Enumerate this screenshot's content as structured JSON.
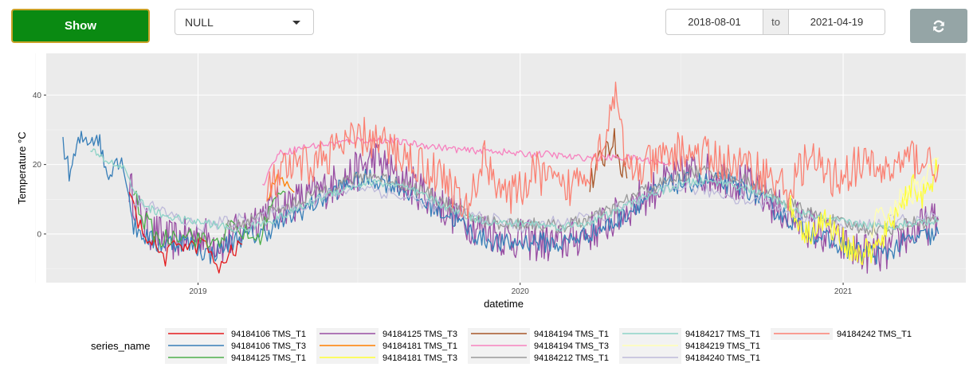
{
  "controls": {
    "show_label": "Show",
    "select_value": "NULL",
    "date_start": "2018-08-01",
    "date_sep": "to",
    "date_end": "2021-04-19",
    "show_color": "#0a8a12",
    "refresh_icon": "refresh-icon"
  },
  "chart_data": {
    "type": "line",
    "xlabel": "datetime",
    "ylabel": "Temperature °C",
    "x_range": [
      "2018-07-13",
      "2021-05-20"
    ],
    "ylim": [
      -14,
      52
    ],
    "x_ticks": [
      {
        "date": "2019-01-01",
        "label": "2019"
      },
      {
        "date": "2020-01-01",
        "label": "2020"
      },
      {
        "date": "2021-01-01",
        "label": "2021"
      }
    ],
    "y_ticks": [
      0,
      20,
      40
    ],
    "grid": true,
    "legend_title": "series_name",
    "legend_position": "bottom",
    "series": [
      {
        "name": "94184106 TMS_T1",
        "color": "#e41a1c",
        "start": "2018-10-15",
        "end": "2019-02-20",
        "points": [
          [
            "2018-10-15",
            12
          ],
          [
            "2018-10-25",
            3
          ],
          [
            "2018-11-15",
            -4
          ],
          [
            "2018-11-25",
            -7
          ],
          [
            "2018-12-10",
            -2
          ],
          [
            "2018-12-25",
            -4
          ],
          [
            "2019-01-10",
            -2
          ],
          [
            "2019-01-22",
            -11
          ],
          [
            "2019-02-05",
            -6
          ],
          [
            "2019-02-20",
            -3
          ]
        ]
      },
      {
        "name": "94184106 TMS_T3",
        "color": "#377eb8",
        "start": "2018-08-01",
        "end": "2021-04-19",
        "points": [
          [
            "2018-08-01",
            27
          ],
          [
            "2018-08-08",
            17
          ],
          [
            "2018-08-20",
            27
          ],
          [
            "2018-09-10",
            28
          ],
          [
            "2018-09-20",
            17
          ],
          [
            "2018-10-01",
            22
          ],
          [
            "2018-10-10",
            19
          ],
          [
            "2018-10-20",
            2
          ],
          [
            "2018-11-15",
            -3
          ],
          [
            "2018-12-15",
            -2
          ],
          [
            "2019-01-15",
            -6
          ],
          [
            "2019-02-15",
            -1
          ],
          [
            "2019-03-15",
            0
          ],
          [
            "2019-04-15",
            5
          ],
          [
            "2019-05-15",
            9
          ],
          [
            "2019-06-15",
            14
          ],
          [
            "2019-07-15",
            16
          ],
          [
            "2019-08-15",
            14
          ],
          [
            "2019-09-15",
            9
          ],
          [
            "2019-10-15",
            5
          ],
          [
            "2019-11-15",
            -1
          ],
          [
            "2019-12-15",
            -3
          ],
          [
            "2020-01-15",
            -2
          ],
          [
            "2020-02-15",
            -3
          ],
          [
            "2020-03-15",
            0
          ],
          [
            "2020-04-15",
            3
          ],
          [
            "2020-05-15",
            9
          ],
          [
            "2020-06-15",
            14
          ],
          [
            "2020-07-15",
            15
          ],
          [
            "2020-08-15",
            15
          ],
          [
            "2020-09-15",
            13
          ],
          [
            "2020-10-15",
            7
          ],
          [
            "2020-11-15",
            2
          ],
          [
            "2020-12-15",
            -2
          ],
          [
            "2021-01-15",
            -5
          ],
          [
            "2021-02-15",
            -6
          ],
          [
            "2021-03-15",
            -2
          ],
          [
            "2021-04-19",
            0
          ]
        ]
      },
      {
        "name": "94184125 TMS_T1",
        "color": "#4daf4a",
        "start": "2018-10-20",
        "end": "2019-04-10",
        "points": [
          [
            "2018-10-20",
            12
          ],
          [
            "2018-11-01",
            4
          ],
          [
            "2018-11-20",
            -2
          ],
          [
            "2018-12-15",
            1
          ],
          [
            "2019-01-15",
            -3
          ],
          [
            "2019-02-10",
            2
          ],
          [
            "2019-03-10",
            -2
          ],
          [
            "2019-03-25",
            8
          ],
          [
            "2019-04-10",
            12
          ]
        ]
      },
      {
        "name": "94184125 TMS_T3",
        "color": "#984ea3",
        "start": "2018-10-15",
        "end": "2021-04-19",
        "points": [
          [
            "2018-10-15",
            14
          ],
          [
            "2018-11-01",
            2
          ],
          [
            "2018-12-01",
            -2
          ],
          [
            "2019-01-01",
            0
          ],
          [
            "2019-02-01",
            -3
          ],
          [
            "2019-03-01",
            4
          ],
          [
            "2019-04-01",
            8
          ],
          [
            "2019-05-01",
            10
          ],
          [
            "2019-06-01",
            14
          ],
          [
            "2019-07-01",
            18
          ],
          [
            "2019-07-20",
            22
          ],
          [
            "2019-08-15",
            16
          ],
          [
            "2019-09-15",
            12
          ],
          [
            "2019-10-15",
            6
          ],
          [
            "2019-11-15",
            2
          ],
          [
            "2019-12-15",
            -1
          ],
          [
            "2020-01-15",
            -2
          ],
          [
            "2020-02-15",
            -3
          ],
          [
            "2020-03-15",
            0
          ],
          [
            "2020-04-15",
            4
          ],
          [
            "2020-05-15",
            10
          ],
          [
            "2020-06-15",
            15
          ],
          [
            "2020-07-15",
            18
          ],
          [
            "2020-08-15",
            17
          ],
          [
            "2020-09-15",
            14
          ],
          [
            "2020-10-15",
            8
          ],
          [
            "2020-11-15",
            3
          ],
          [
            "2020-12-15",
            -1
          ],
          [
            "2021-01-15",
            -5
          ],
          [
            "2021-02-15",
            -6
          ],
          [
            "2021-03-15",
            0
          ],
          [
            "2021-04-19",
            4
          ]
        ]
      },
      {
        "name": "94184181 TMS_T1",
        "color": "#ff7f00",
        "start": "2019-03-20",
        "end": "2019-04-20",
        "points": [
          [
            "2019-03-20",
            10
          ],
          [
            "2019-04-01",
            18
          ],
          [
            "2019-04-20",
            12
          ]
        ]
      },
      {
        "name": "94184181 TMS_T3",
        "color": "#ffff33",
        "start": "2020-11-01",
        "end": "2021-04-19",
        "points": [
          [
            "2020-11-01",
            8
          ],
          [
            "2020-11-20",
            0
          ],
          [
            "2020-12-10",
            4
          ],
          [
            "2021-01-01",
            -2
          ],
          [
            "2021-01-20",
            -6
          ],
          [
            "2021-02-10",
            -4
          ],
          [
            "2021-03-01",
            6
          ],
          [
            "2021-03-20",
            14
          ],
          [
            "2021-04-05",
            10
          ],
          [
            "2021-04-19",
            20
          ]
        ]
      },
      {
        "name": "94184194 TMS_T1",
        "color": "#a65628",
        "start": "2020-03-20",
        "end": "2020-05-01",
        "points": [
          [
            "2020-03-20",
            14
          ],
          [
            "2020-04-15",
            28
          ],
          [
            "2020-05-01",
            16
          ]
        ]
      },
      {
        "name": "94184194 TMS_T3",
        "color": "#f781bf",
        "start": "2019-03-15",
        "end": "2020-06-20",
        "points": [
          [
            "2019-03-15",
            14
          ],
          [
            "2019-04-01",
            23
          ],
          [
            "2019-05-01",
            25
          ],
          [
            "2019-06-01",
            26
          ],
          [
            "2019-07-01",
            27
          ],
          [
            "2019-08-01",
            27
          ],
          [
            "2019-09-01",
            26
          ],
          [
            "2019-10-01",
            25
          ],
          [
            "2019-11-01",
            24
          ],
          [
            "2019-12-01",
            24
          ],
          [
            "2020-01-01",
            23
          ],
          [
            "2020-02-01",
            23
          ],
          [
            "2020-03-01",
            22
          ],
          [
            "2020-04-01",
            22
          ],
          [
            "2020-05-01",
            22
          ],
          [
            "2020-06-01",
            21
          ],
          [
            "2020-06-20",
            20
          ]
        ]
      },
      {
        "name": "94184212 TMS_T1",
        "color": "#999999",
        "start": "2019-02-01",
        "end": "2021-04-19",
        "points": [
          [
            "2019-02-01",
            2
          ],
          [
            "2019-03-15",
            5
          ],
          [
            "2019-04-15",
            8
          ],
          [
            "2019-05-15",
            12
          ],
          [
            "2019-06-15",
            15
          ],
          [
            "2019-07-15",
            17
          ],
          [
            "2019-08-15",
            15
          ],
          [
            "2019-09-15",
            12
          ],
          [
            "2019-10-15",
            8
          ],
          [
            "2019-11-15",
            4
          ],
          [
            "2019-12-15",
            3
          ],
          [
            "2020-01-15",
            3
          ],
          [
            "2020-02-15",
            2
          ],
          [
            "2020-03-15",
            4
          ],
          [
            "2020-04-15",
            7
          ],
          [
            "2020-05-15",
            12
          ],
          [
            "2020-06-15",
            15
          ],
          [
            "2020-07-15",
            18
          ],
          [
            "2020-08-15",
            18
          ],
          [
            "2020-09-15",
            15
          ],
          [
            "2020-10-15",
            11
          ],
          [
            "2020-11-15",
            7
          ],
          [
            "2020-12-15",
            4
          ],
          [
            "2021-01-15",
            2
          ],
          [
            "2021-02-15",
            1
          ],
          [
            "2021-03-15",
            3
          ],
          [
            "2021-04-19",
            4
          ]
        ]
      },
      {
        "name": "94184217 TMS_T1",
        "color": "#8dd3c7",
        "start": "2018-09-01",
        "end": "2021-04-19",
        "points": [
          [
            "2018-09-01",
            24
          ],
          [
            "2018-09-20",
            21
          ],
          [
            "2018-10-10",
            19
          ],
          [
            "2018-10-25",
            10
          ],
          [
            "2018-11-15",
            6
          ],
          [
            "2018-12-15",
            4
          ],
          [
            "2019-01-15",
            3
          ],
          [
            "2019-02-15",
            1
          ],
          [
            "2019-03-15",
            3
          ],
          [
            "2019-04-15",
            6
          ],
          [
            "2019-05-15",
            10
          ],
          [
            "2019-06-15",
            13
          ],
          [
            "2019-07-15",
            15
          ],
          [
            "2019-08-15",
            14
          ],
          [
            "2019-09-15",
            11
          ],
          [
            "2019-10-15",
            7
          ],
          [
            "2019-11-15",
            4
          ],
          [
            "2019-12-15",
            3
          ],
          [
            "2020-01-15",
            3
          ],
          [
            "2020-02-15",
            2
          ],
          [
            "2020-03-15",
            3
          ],
          [
            "2020-04-15",
            6
          ],
          [
            "2020-05-15",
            10
          ],
          [
            "2020-06-15",
            13
          ],
          [
            "2020-07-15",
            15
          ],
          [
            "2020-08-15",
            15
          ],
          [
            "2020-09-15",
            13
          ],
          [
            "2020-10-15",
            10
          ],
          [
            "2020-11-15",
            6
          ],
          [
            "2020-12-15",
            4
          ],
          [
            "2021-01-15",
            3
          ],
          [
            "2021-02-15",
            2
          ],
          [
            "2021-03-15",
            3
          ],
          [
            "2021-04-19",
            4
          ]
        ]
      },
      {
        "name": "94184219 TMS_T1",
        "color": "#ffffb3",
        "start": "2021-02-01",
        "end": "2021-04-19",
        "points": [
          [
            "2021-02-01",
            2
          ],
          [
            "2021-03-01",
            8
          ],
          [
            "2021-04-01",
            15
          ],
          [
            "2021-04-19",
            22
          ]
        ]
      },
      {
        "name": "94184240 TMS_T1",
        "color": "#bebada",
        "start": "2018-10-20",
        "end": "2021-04-19",
        "points": [
          [
            "2018-10-20",
            10
          ],
          [
            "2019-01-01",
            2
          ],
          [
            "2019-04-01",
            6
          ],
          [
            "2019-07-01",
            14
          ],
          [
            "2019-10-01",
            8
          ],
          [
            "2020-01-01",
            2
          ],
          [
            "2020-04-01",
            5
          ],
          [
            "2020-07-01",
            14
          ],
          [
            "2020-10-01",
            9
          ],
          [
            "2021-01-01",
            2
          ],
          [
            "2021-04-19",
            5
          ]
        ]
      },
      {
        "name": "94184242 TMS_T1",
        "color": "#fb8072",
        "start": "2019-03-20",
        "end": "2021-04-19",
        "points": [
          [
            "2019-03-20",
            12
          ],
          [
            "2019-04-10",
            18
          ],
          [
            "2019-05-10",
            20
          ],
          [
            "2019-06-10",
            25
          ],
          [
            "2019-07-10",
            28
          ],
          [
            "2019-08-10",
            24
          ],
          [
            "2019-09-10",
            20
          ],
          [
            "2019-10-10",
            16
          ],
          [
            "2019-11-01",
            6
          ],
          [
            "2019-11-20",
            22
          ],
          [
            "2019-12-20",
            10
          ],
          [
            "2020-01-20",
            18
          ],
          [
            "2020-02-20",
            12
          ],
          [
            "2020-03-20",
            20
          ],
          [
            "2020-04-10",
            30
          ],
          [
            "2020-04-15",
            44
          ],
          [
            "2020-05-01",
            18
          ],
          [
            "2020-06-01",
            20
          ],
          [
            "2020-07-01",
            24
          ],
          [
            "2020-08-01",
            22
          ],
          [
            "2020-09-01",
            20
          ],
          [
            "2020-10-01",
            18
          ],
          [
            "2020-11-01",
            12
          ],
          [
            "2020-11-20",
            22
          ],
          [
            "2020-12-20",
            16
          ],
          [
            "2021-01-20",
            20
          ],
          [
            "2021-02-20",
            18
          ],
          [
            "2021-03-20",
            22
          ],
          [
            "2021-04-19",
            20
          ]
        ]
      }
    ]
  }
}
